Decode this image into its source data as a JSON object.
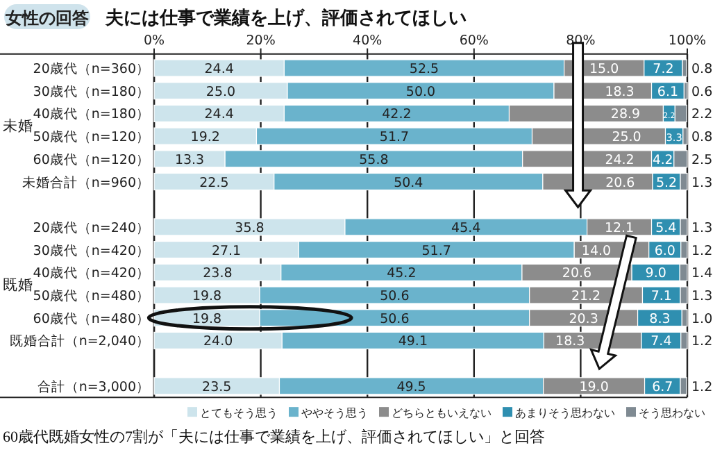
{
  "chart_data": {
    "type": "bar",
    "orientation": "horizontal",
    "stacked": true,
    "subtitle": "女性の回答",
    "title": "夫には仕事で業績を上げ、評価されてほしい",
    "categories": [
      "20歳代（n=360）",
      "30歳代（n=180）",
      "40歳代（n=180）",
      "50歳代（n=120）",
      "60歳代（n=120）",
      "未婚合計（n=960）",
      null,
      "20歳代（n=240）",
      "30歳代（n=420）",
      "40歳代（n=420）",
      "50歳代（n=480）",
      "60歳代（n=480）",
      "既婚合計（n=2,040）",
      null,
      "合計（n=3,000）"
    ],
    "xlim": [
      0,
      100
    ],
    "xticks": [
      {
        "value": 0,
        "label": "0%"
      },
      {
        "value": 20,
        "label": "20%"
      },
      {
        "value": 40,
        "label": "40%"
      },
      {
        "value": 60,
        "label": "60%"
      },
      {
        "value": 80,
        "label": "80%"
      },
      {
        "value": 100,
        "label": "100%"
      }
    ],
    "grid": "x",
    "legend": "bottom",
    "series": [
      {
        "name": "とてもそう思う",
        "color": "#cde4ec",
        "values": [
          24.4,
          25.0,
          24.4,
          19.2,
          13.3,
          22.5,
          null,
          35.8,
          27.1,
          23.8,
          19.8,
          19.8,
          24.0,
          null,
          23.5
        ],
        "value_labels": [
          "24.4",
          "25.0",
          "24.4",
          "19.2",
          "13.3",
          "22.5",
          null,
          "35.8",
          "27.1",
          "23.8",
          "19.8",
          "19.8",
          "24.0",
          null,
          "23.5"
        ]
      },
      {
        "name": "ややそう思う",
        "color": "#6ab3cc",
        "values": [
          52.5,
          50.0,
          42.2,
          51.7,
          55.8,
          50.4,
          null,
          45.4,
          51.7,
          45.2,
          50.6,
          50.6,
          49.1,
          null,
          49.5
        ],
        "value_labels": [
          "52.5",
          "50.0",
          "42.2",
          "51.7",
          "55.8",
          "50.4",
          null,
          "45.4",
          "51.7",
          "45.2",
          "50.6",
          "50.6",
          "49.1",
          null,
          "49.5"
        ]
      },
      {
        "name": "どちらともいえない",
        "color": "#8c8c8c",
        "values": [
          15.0,
          18.3,
          28.9,
          25.0,
          24.2,
          20.6,
          null,
          12.1,
          14.0,
          20.6,
          21.2,
          20.3,
          18.3,
          null,
          19.0
        ],
        "value_labels": [
          "15.0",
          "18.3",
          "28.9",
          "25.0",
          "24.2",
          "20.6",
          null,
          "12.1",
          "14.0",
          "20.6",
          "21.2",
          "20.3",
          "18.3",
          null,
          "19.0"
        ]
      },
      {
        "name": "あまりそう思わない",
        "color": "#2f8fb0",
        "values": [
          7.2,
          6.1,
          2.2,
          3.3,
          4.2,
          5.2,
          null,
          5.4,
          6.0,
          9.0,
          7.1,
          8.3,
          7.4,
          null,
          6.7
        ],
        "value_labels": [
          "7.2",
          "6.1",
          "2.2",
          "3.3",
          "4.2",
          "5.2",
          null,
          "5.4",
          "6.0",
          "9.0",
          "7.1",
          "8.3",
          "7.4",
          null,
          "6.7"
        ]
      },
      {
        "name": "そう思わない",
        "color": "#7f8a92",
        "values": [
          0.8,
          0.6,
          2.2,
          0.8,
          2.5,
          1.3,
          null,
          1.3,
          1.2,
          1.4,
          1.3,
          1.0,
          1.2,
          null,
          1.2
        ],
        "value_labels": [
          "0.8",
          "0.6",
          "2.2",
          "0.8",
          "2.5",
          "1.3",
          null,
          "1.3",
          "1.2",
          "1.4",
          "1.3",
          "1.0",
          "1.2",
          null,
          "1.2"
        ]
      }
    ],
    "annotations": [
      "未婚",
      "既婚",
      "60歳代既婚女性の7割が「夫には仕事で業績を上げ、評価されてほしい」と回答"
    ]
  }
}
